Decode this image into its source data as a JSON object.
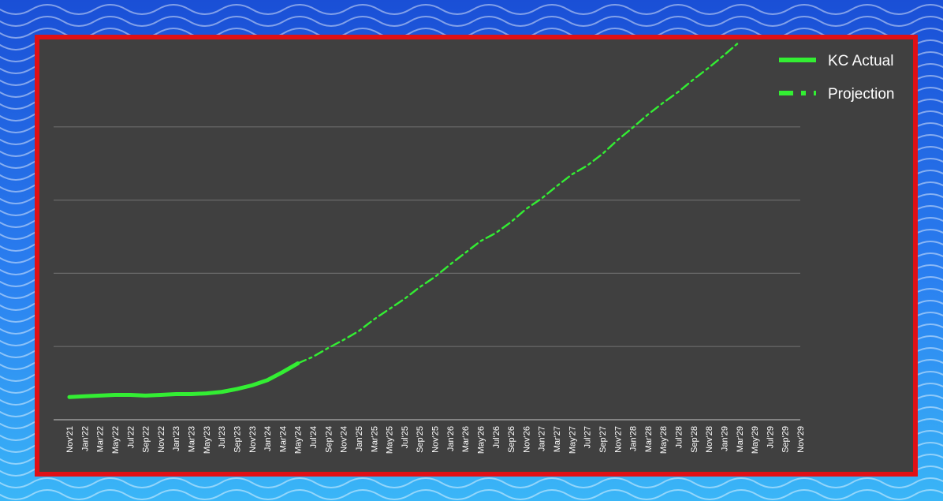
{
  "colors": {
    "frame_border": "#e01015",
    "plot_background": "#404040",
    "line": "#33ee33",
    "grid": "#6a6a6a",
    "text": "#ffffff"
  },
  "chart_data": {
    "type": "line",
    "title": "",
    "xlabel": "",
    "ylabel": "",
    "grid": "horizontal",
    "legend_position": "top-right",
    "categories": [
      "Nov'21",
      "Jan'22",
      "Mar'22",
      "May'22",
      "Jul'22",
      "Sep'22",
      "Nov'22",
      "Jan'23",
      "Mar'23",
      "May'23",
      "Jul'23",
      "Sep'23",
      "Nov'23",
      "Jan'24",
      "Mar'24",
      "May'24",
      "Jul'24",
      "Sep'24",
      "Nov'24",
      "Jan'25",
      "Mar'25",
      "May'25",
      "Jul'25",
      "Sep'25",
      "Nov'25",
      "Jan'26",
      "Mar'26",
      "May'26",
      "Jul'26",
      "Sep'26",
      "Nov'26",
      "Jan'27",
      "Mar'27",
      "May'27",
      "Jul'27",
      "Sep'27",
      "Nov'27",
      "Jan'28",
      "Mar'28",
      "May'28",
      "Jul'28",
      "Sep'28",
      "Nov'28",
      "Jan'29",
      "Mar'29",
      "May'29",
      "Jul'29",
      "Sep'29",
      "Nov'29"
    ],
    "ylim": [
      0,
      5
    ],
    "series": [
      {
        "name": "KC Actual",
        "style": "solid",
        "values": [
          0.31,
          0.32,
          0.33,
          0.34,
          0.34,
          0.33,
          0.34,
          0.35,
          0.35,
          0.36,
          0.38,
          0.42,
          0.47,
          0.54,
          0.65,
          0.77,
          null,
          null,
          null,
          null,
          null,
          null,
          null,
          null,
          null,
          null,
          null,
          null,
          null,
          null,
          null,
          null,
          null,
          null,
          null,
          null,
          null,
          null,
          null,
          null,
          null,
          null,
          null,
          null,
          null,
          null,
          null,
          null,
          null
        ]
      },
      {
        "name": "Projection",
        "style": "dash-dot",
        "values": [
          null,
          null,
          null,
          null,
          null,
          null,
          null,
          null,
          null,
          null,
          null,
          null,
          null,
          null,
          null,
          0.77,
          0.86,
          0.98,
          1.09,
          1.21,
          1.37,
          1.51,
          1.65,
          1.81,
          1.95,
          2.12,
          2.28,
          2.44,
          2.55,
          2.7,
          2.88,
          3.02,
          3.19,
          3.35,
          3.47,
          3.63,
          3.82,
          3.99,
          4.17,
          4.33,
          4.48,
          4.65,
          4.81,
          4.98,
          5.16,
          null,
          null,
          null,
          null
        ]
      }
    ]
  }
}
